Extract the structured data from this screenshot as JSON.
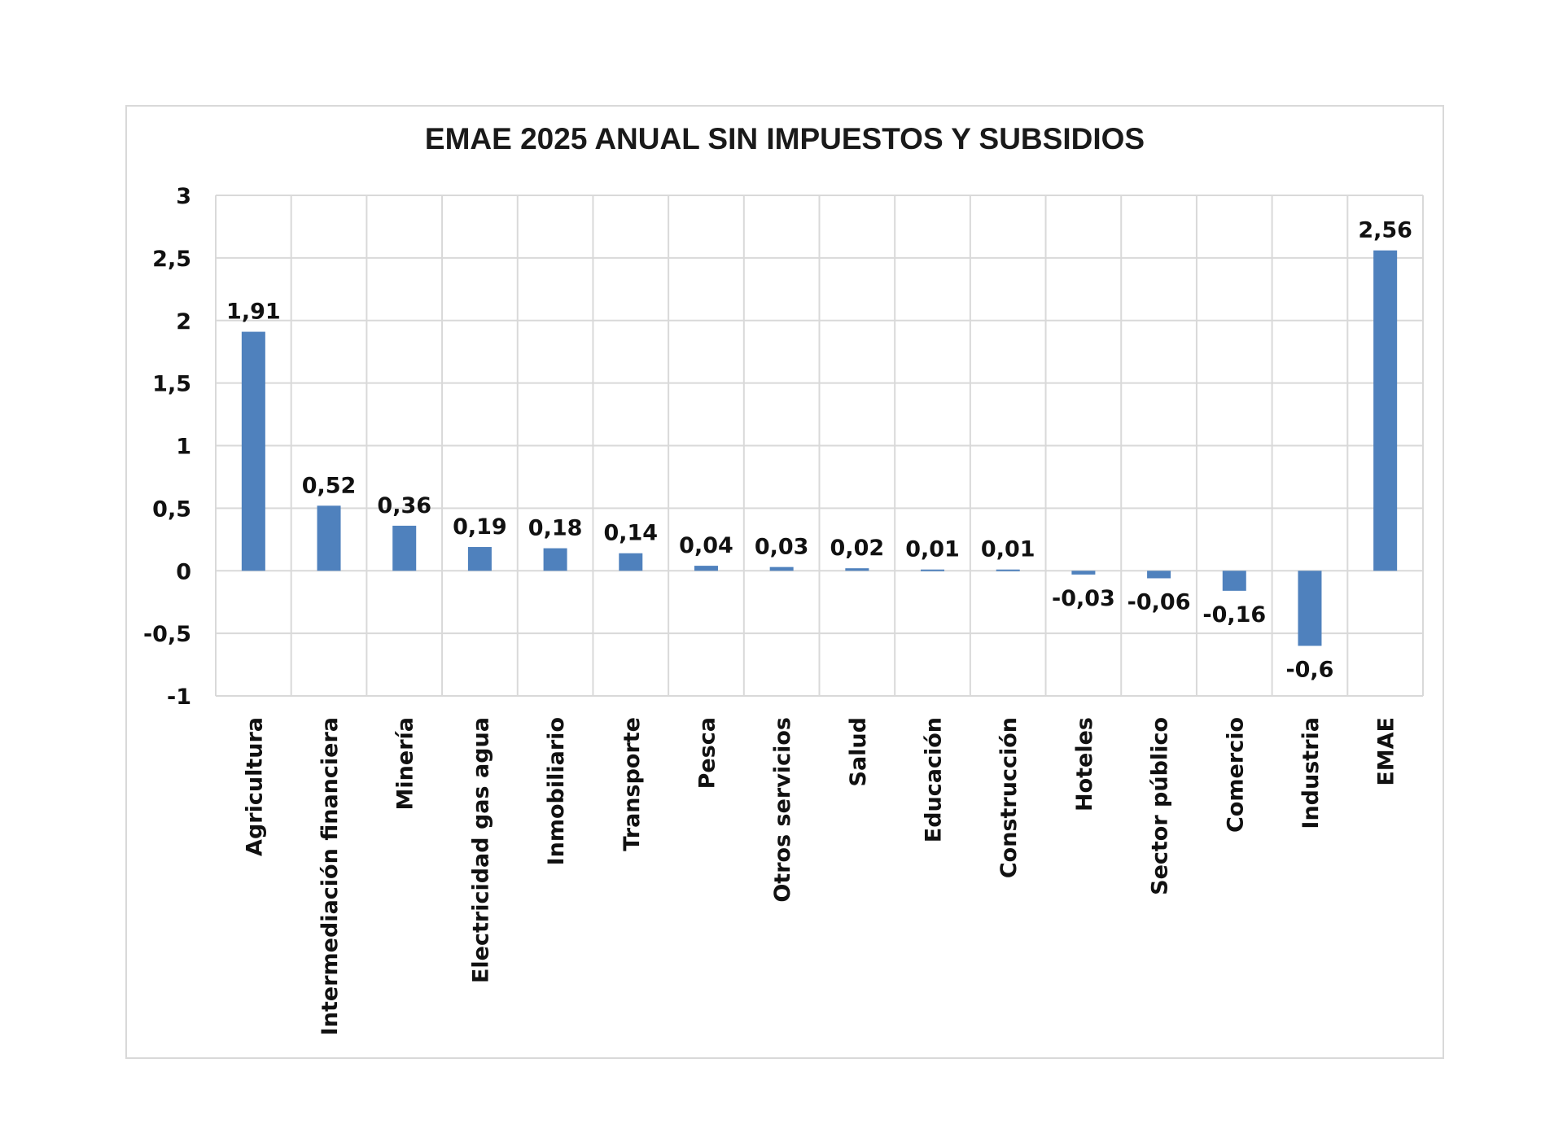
{
  "chart_data": {
    "type": "bar",
    "title": "EMAE 2025 ANUAL SIN IMPUESTOS Y SUBSIDIOS",
    "categories": [
      "Agricultura",
      "Intermediación financiera",
      "Minería",
      "Electricidad gas agua",
      "Inmobiliario",
      "Transporte",
      "Pesca",
      "Otros servicios",
      "Salud",
      "Educación",
      "Construcción",
      "Hoteles",
      "Sector público",
      "Comercio",
      "Industria",
      "EMAE"
    ],
    "values": [
      1.91,
      0.52,
      0.36,
      0.19,
      0.18,
      0.14,
      0.04,
      0.03,
      0.02,
      0.01,
      0.01,
      -0.03,
      -0.06,
      -0.16,
      -0.6,
      2.56
    ],
    "data_labels": [
      "1,91",
      "0,52",
      "0,36",
      "0,19",
      "0,18",
      "0,14",
      "0,04",
      "0,03",
      "0,02",
      "0,01",
      "0,01",
      "-0,03",
      "-0,06",
      "-0,16",
      "-0,6",
      "2,56"
    ],
    "ylim": [
      -1,
      3
    ],
    "yticks": [
      3,
      2.5,
      2,
      1.5,
      1,
      0.5,
      0,
      -0.5,
      -1
    ],
    "ytick_labels": [
      "3",
      "2,5",
      "2",
      "1,5",
      "1",
      "0,5",
      "0",
      "-0,5",
      "-1"
    ],
    "xlabel": "",
    "ylabel": "",
    "grid": true,
    "bar_color": "#4f81bd",
    "grid_color": "#d9d9d9"
  }
}
